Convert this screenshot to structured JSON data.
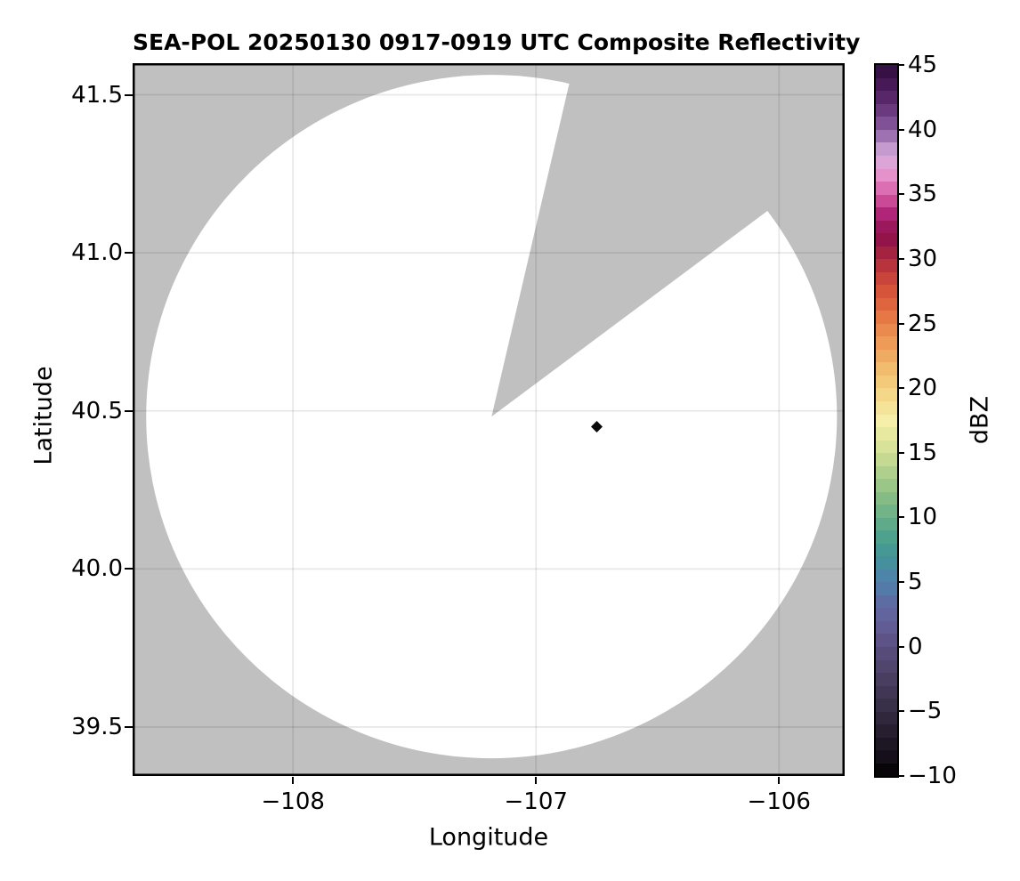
{
  "chart_data": {
    "type": "heatmap",
    "title": "SEA-POL 20250130 0917-0919 UTC Composite Reflectivity",
    "xlabel": "Longitude",
    "ylabel": "Latitude",
    "xlim": [
      -108.66,
      -105.73
    ],
    "ylim": [
      39.345,
      41.6
    ],
    "xtick_values": [
      -108,
      -107,
      -106
    ],
    "xtick_labels": [
      "−108",
      "−107",
      "−106"
    ],
    "ytick_values": [
      41.5,
      41.0,
      40.5,
      40.0,
      39.5
    ],
    "ytick_labels": [
      "41.5",
      "41.0",
      "40.5",
      "40.0",
      "39.5"
    ],
    "grid": true,
    "grid_color": "rgba(0,0,0,0.09)",
    "frame_color": "#000000",
    "background_color": "#ffffff",
    "radar": {
      "description": "Radar scan coverage disk; white = scanned area, gray = no data",
      "center_lon": -107.183,
      "center_lat": 40.482,
      "radius_deg_lat": 1.081,
      "unscanned_sector_azimuth_deg": [
        13,
        53
      ],
      "scanned_color": "#ffffff",
      "nodata_color": "#c0c0c0"
    },
    "echoes": [
      {
        "lon": -106.75,
        "lat": 40.45,
        "shape": "diamond",
        "color": "#0a0a0a"
      }
    ],
    "colorbar": {
      "label": "dBZ",
      "min": -10,
      "max": 45,
      "band_step_dbz": 1,
      "tick_values": [
        45,
        40,
        35,
        30,
        25,
        20,
        15,
        10,
        5,
        0,
        -5,
        -10
      ],
      "tick_labels": [
        "45",
        "40",
        "35",
        "30",
        "25",
        "20",
        "15",
        "10",
        "5",
        "0",
        "−5",
        "−10"
      ],
      "stops": [
        {
          "v": -10,
          "c": "#000000"
        },
        {
          "v": -8.5,
          "c": "#140f19"
        },
        {
          "v": -7,
          "c": "#221b2a"
        },
        {
          "v": -5,
          "c": "#342b42"
        },
        {
          "v": -3,
          "c": "#453a5a"
        },
        {
          "v": -1,
          "c": "#544973"
        },
        {
          "v": 0.5,
          "c": "#5d5386"
        },
        {
          "v": 2,
          "c": "#636099"
        },
        {
          "v": 3.5,
          "c": "#5d6da4"
        },
        {
          "v": 5,
          "c": "#4f80ac"
        },
        {
          "v": 6.5,
          "c": "#45909c"
        },
        {
          "v": 8,
          "c": "#459c8f"
        },
        {
          "v": 10,
          "c": "#68ae87"
        },
        {
          "v": 12,
          "c": "#8fc186"
        },
        {
          "v": 14,
          "c": "#bad58e"
        },
        {
          "v": 16,
          "c": "#e2e69c"
        },
        {
          "v": 17.5,
          "c": "#f5efa9"
        },
        {
          "v": 19,
          "c": "#f4dd90"
        },
        {
          "v": 21,
          "c": "#f2c473"
        },
        {
          "v": 23,
          "c": "#efa35c"
        },
        {
          "v": 25,
          "c": "#e9814a"
        },
        {
          "v": 27,
          "c": "#db5c3a"
        },
        {
          "v": 29,
          "c": "#c33d3b"
        },
        {
          "v": 30,
          "c": "#ad2a3e"
        },
        {
          "v": 31.8,
          "c": "#8c0f4a"
        },
        {
          "v": 33.5,
          "c": "#b12578"
        },
        {
          "v": 35,
          "c": "#d85ca8"
        },
        {
          "v": 36.5,
          "c": "#e592cb"
        },
        {
          "v": 38,
          "c": "#d8aedd"
        },
        {
          "v": 40,
          "c": "#8a5ca2"
        },
        {
          "v": 41.5,
          "c": "#6b3a7e"
        },
        {
          "v": 43,
          "c": "#4f1d5e"
        },
        {
          "v": 45,
          "c": "#2f0d3c"
        }
      ]
    }
  }
}
